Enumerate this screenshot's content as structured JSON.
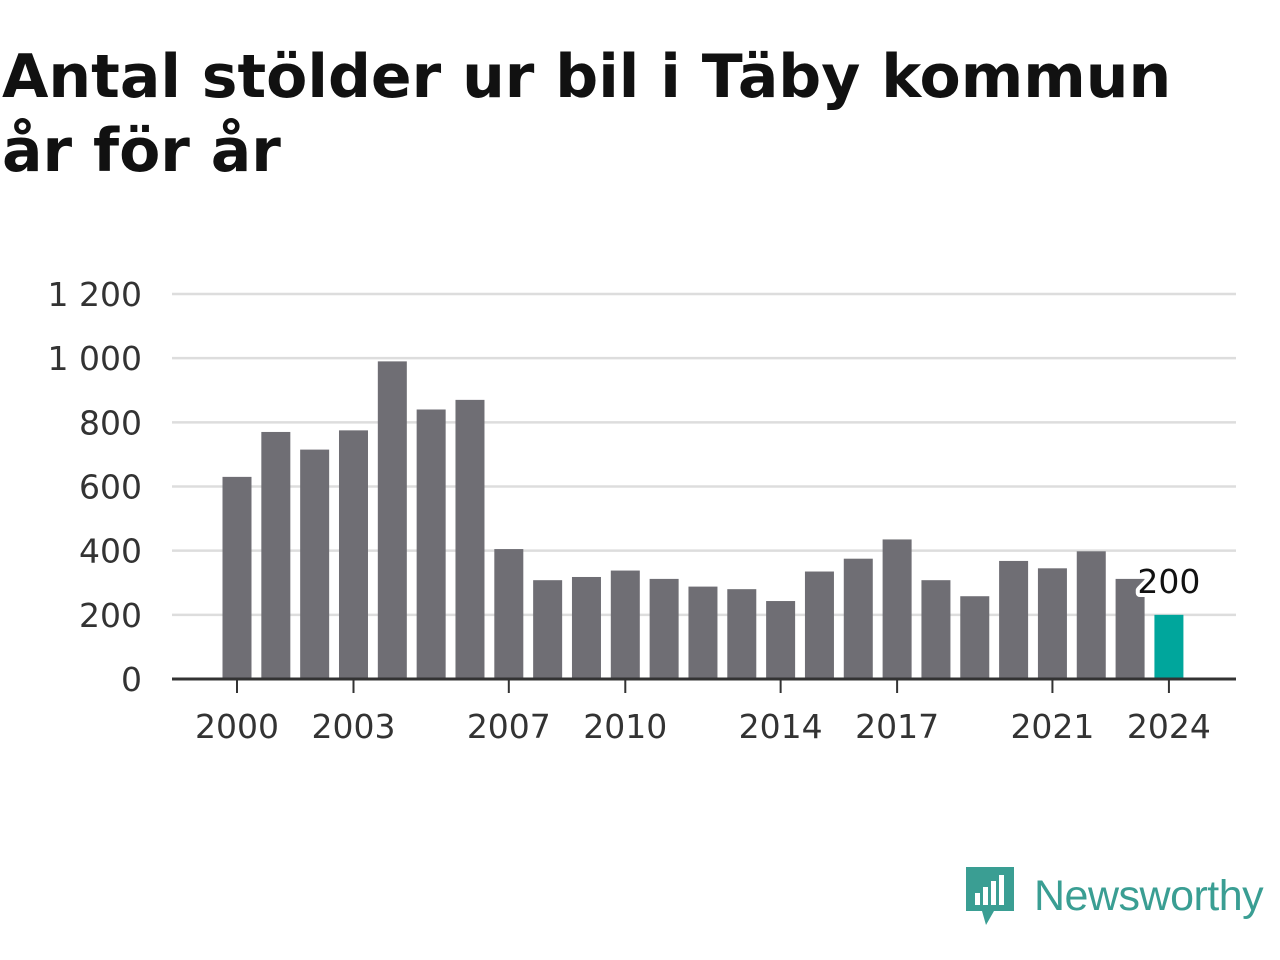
{
  "title": "Antal stölder ur bil i Täby kommun år för år",
  "brand": {
    "name": "Newsworthy",
    "icon": "newsworthy-logo-icon",
    "color": "#3a9e93"
  },
  "colors": {
    "bar": "#6f6e74",
    "highlight": "#00a69c",
    "grid": "#dddddd",
    "axis": "#333333"
  },
  "chart_data": {
    "type": "bar",
    "x": [
      2000,
      2001,
      2002,
      2003,
      2004,
      2005,
      2006,
      2007,
      2008,
      2009,
      2010,
      2011,
      2012,
      2013,
      2014,
      2015,
      2016,
      2017,
      2018,
      2019,
      2020,
      2021,
      2022,
      2023,
      2024
    ],
    "values": [
      630,
      770,
      715,
      775,
      990,
      840,
      870,
      405,
      308,
      318,
      338,
      312,
      288,
      280,
      243,
      335,
      375,
      435,
      308,
      258,
      368,
      345,
      398,
      312,
      200
    ],
    "xticks": [
      "2000",
      "2003",
      "2007",
      "2010",
      "2014",
      "2017",
      "2021",
      "2024"
    ],
    "yticks": [
      "0",
      "200",
      "400",
      "600",
      "800",
      "1 000",
      "1 200"
    ],
    "ylim": [
      0,
      1200
    ],
    "highlight_index": 24,
    "data_label": "200",
    "grid": true,
    "legend": "none"
  }
}
